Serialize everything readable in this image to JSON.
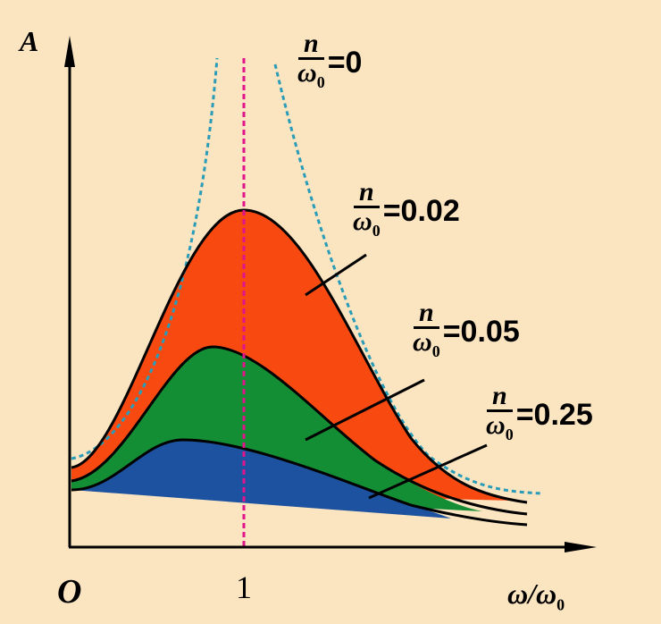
{
  "axes": {
    "y_label": "A",
    "x_label": "ω/ω",
    "x_label_sub": "0",
    "origin": "O",
    "x_tick": "1"
  },
  "curves": [
    {
      "num": "n",
      "den": "ω",
      "den_sub": "0",
      "value": "=0"
    },
    {
      "num": "n",
      "den": "ω",
      "den_sub": "0",
      "value": "=0.02"
    },
    {
      "num": "n",
      "den": "ω",
      "den_sub": "0",
      "value": "=0.05"
    },
    {
      "num": "n",
      "den": "ω",
      "den_sub": "0",
      "value": "=0.25"
    }
  ],
  "colors": {
    "background": "#fbe5c1",
    "n002": "#f84a10",
    "n005": "#148e34",
    "n025": "#1d52a0",
    "undamped": "#2a9cb8",
    "resonance_line": "#e0148c"
  }
}
